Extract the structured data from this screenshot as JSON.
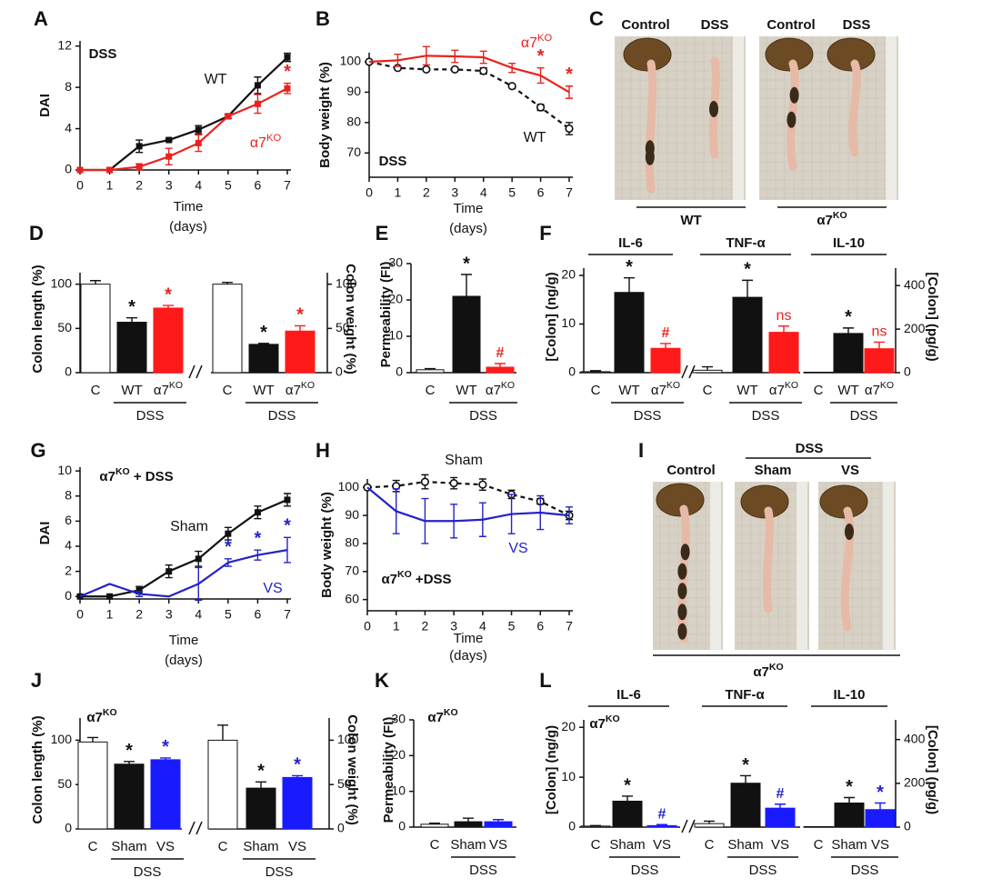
{
  "chart_data": [
    {
      "type": "line",
      "panel": "A",
      "ylabel": "DAI",
      "xlabel": [
        "Time",
        "(days)"
      ],
      "inset": "DSS",
      "x": [
        0,
        1,
        2,
        3,
        4,
        5,
        6,
        7
      ],
      "xlim": [
        0,
        7
      ],
      "xticks": [
        0,
        1,
        2,
        3,
        4,
        5,
        6,
        7
      ],
      "ylim": [
        0,
        12.5
      ],
      "yticks": [
        0,
        4,
        8,
        12
      ],
      "series": [
        {
          "name": "WT",
          "color": "#111111",
          "marker": "square",
          "dash": false,
          "values": [
            0,
            0,
            2.3,
            2.9,
            3.9,
            5.2,
            8.2,
            10.9
          ],
          "errors": [
            0,
            0,
            0.6,
            0.1,
            0.4,
            0.2,
            0.8,
            0.4
          ]
        },
        {
          "name": "α7KO",
          "color": "#e8231e",
          "marker": "square",
          "dash": false,
          "values": [
            0,
            0,
            0.3,
            1.3,
            2.6,
            5.2,
            6.4,
            7.9
          ],
          "errors": [
            0,
            0,
            0.3,
            0.8,
            0.8,
            0.2,
            0.9,
            0.5
          ]
        }
      ],
      "marks": [
        {
          "series": 1,
          "index": 7,
          "text": "*"
        }
      ]
    },
    {
      "type": "line",
      "panel": "B",
      "ylabel": "Body weight (%)",
      "xlabel": [
        "Time",
        "(days)"
      ],
      "inset": "DSS",
      "x": [
        0,
        1,
        2,
        3,
        4,
        5,
        6,
        7
      ],
      "xlim": [
        0,
        7
      ],
      "xticks": [
        0,
        1,
        2,
        3,
        4,
        5,
        6,
        7
      ],
      "ylim": [
        62,
        103
      ],
      "yticks": [
        70,
        80,
        90,
        100
      ],
      "series": [
        {
          "name": "WT",
          "color": "#111111",
          "marker": "circle-open",
          "dash": true,
          "values": [
            100,
            98,
            97.5,
            97.5,
            97,
            92,
            85,
            78
          ],
          "errors": [
            0,
            0.5,
            0.5,
            0.5,
            1,
            0.5,
            1,
            2
          ]
        },
        {
          "name": "α7KO",
          "color": "#e8231e",
          "marker": "none",
          "dash": false,
          "values": [
            100,
            100.5,
            102,
            101.8,
            101.5,
            98,
            95.5,
            90
          ],
          "errors": [
            0,
            2,
            3,
            2,
            2,
            1.5,
            2.5,
            2
          ]
        }
      ],
      "marks": [
        {
          "series": 1,
          "index": 6,
          "text": "*"
        },
        {
          "series": 1,
          "index": 7,
          "text": "*"
        }
      ]
    },
    {
      "type": "bar",
      "panel": "D",
      "ylabel": "Colon length (%)",
      "y2label": "Colon weight (%)",
      "ylim": [
        0,
        113
      ],
      "yticks": [
        0,
        50,
        100
      ],
      "y2lim": [
        0,
        113
      ],
      "y2ticks": [
        0,
        50,
        100
      ],
      "groups": [
        {
          "axis": "y",
          "categories": [
            "C",
            "WT",
            "α7KO"
          ],
          "values": [
            100,
            57,
            73
          ],
          "errors": [
            4,
            5,
            3
          ],
          "colors": [
            "#ffffff",
            "#111111",
            "#ff1a1a"
          ],
          "bracket": "DSS",
          "marks": [
            {
              "index": 1,
              "text": "*",
              "color": "#111111"
            },
            {
              "index": 2,
              "text": "*",
              "color": "#e8231e"
            }
          ]
        },
        {
          "axis": "y2",
          "categories": [
            "C",
            "WT",
            "α7KO"
          ],
          "values": [
            100,
            32,
            47
          ],
          "errors": [
            2,
            1,
            6
          ],
          "colors": [
            "#ffffff",
            "#111111",
            "#ff1a1a"
          ],
          "bracket": "DSS",
          "marks": [
            {
              "index": 1,
              "text": "*",
              "color": "#111111"
            },
            {
              "index": 2,
              "text": "*",
              "color": "#e8231e"
            }
          ]
        }
      ]
    },
    {
      "type": "bar",
      "panel": "E",
      "ylabel": "Permeability (FI)",
      "ylim": [
        0,
        30
      ],
      "yticks": [
        0,
        10,
        20,
        30
      ],
      "groups": [
        {
          "axis": "y",
          "categories": [
            "C",
            "WT",
            "α7KO"
          ],
          "values": [
            0.8,
            21,
            1.5
          ],
          "errors": [
            0.3,
            6,
            1
          ],
          "colors": [
            "#ffffff",
            "#111111",
            "#ff1a1a"
          ],
          "bracket": "DSS",
          "marks": [
            {
              "index": 1,
              "text": "*",
              "color": "#111111"
            },
            {
              "index": 2,
              "text": "#",
              "color": "#e8231e"
            }
          ]
        }
      ]
    },
    {
      "type": "bar",
      "panel": "F",
      "ylabel": "[Colon] (ng/g)",
      "y2label": "[Colon] (pg/g)",
      "ylim": [
        0,
        21.5
      ],
      "yticks": [
        0,
        10,
        20
      ],
      "y2lim": [
        0,
        480
      ],
      "y2ticks": [
        0,
        200,
        400
      ],
      "groups": [
        {
          "title": "IL-6",
          "axis": "y",
          "categories": [
            "C",
            "WT",
            "α7KO"
          ],
          "values": [
            0.2,
            16.5,
            5
          ],
          "errors": [
            0.2,
            3,
            1
          ],
          "colors": [
            "#ffffff",
            "#111111",
            "#ff1a1a"
          ],
          "bracket": "DSS",
          "marks": [
            {
              "index": 1,
              "text": "*",
              "color": "#111111"
            },
            {
              "index": 2,
              "text": "#",
              "color": "#e8231e"
            }
          ]
        },
        {
          "title": "TNF-α",
          "axis": "y",
          "categories": [
            "C",
            "WT",
            "α7KO"
          ],
          "values": [
            0.5,
            15.5,
            8.3
          ],
          "errors": [
            0.7,
            3.5,
            1.3
          ],
          "colors": [
            "#ffffff",
            "#111111",
            "#ff1a1a"
          ],
          "bracket": "DSS",
          "marks": [
            {
              "index": 1,
              "text": "*",
              "color": "#111111"
            },
            {
              "index": 2,
              "text": "ns",
              "color": "#e8231e"
            }
          ]
        },
        {
          "title": "IL-10",
          "axis": "y2",
          "categories": [
            "C",
            "WT",
            "α7KO"
          ],
          "values": [
            2,
            180,
            110
          ],
          "errors": [
            0,
            25,
            30
          ],
          "colors": [
            "#ffffff",
            "#111111",
            "#ff1a1a"
          ],
          "bracket": "DSS",
          "marks": [
            {
              "index": 1,
              "text": "*",
              "color": "#111111"
            },
            {
              "index": 2,
              "text": "ns",
              "color": "#e8231e"
            }
          ]
        }
      ]
    },
    {
      "type": "line",
      "panel": "G",
      "ylabel": "DAI",
      "xlabel": [
        "Time",
        "(days)"
      ],
      "inset": "α7KO + DSS",
      "x": [
        0,
        1,
        2,
        3,
        4,
        5,
        6,
        7
      ],
      "xlim": [
        0,
        7
      ],
      "xticks": [
        0,
        1,
        2,
        3,
        4,
        5,
        6,
        7
      ],
      "ylim": [
        -0.2,
        10.3
      ],
      "yticks": [
        0,
        2,
        4,
        6,
        8,
        10
      ],
      "series": [
        {
          "name": "Sham",
          "color": "#111111",
          "marker": "square",
          "dash": false,
          "values": [
            0,
            0,
            0.5,
            2,
            3,
            5,
            6.7,
            7.7
          ],
          "errors": [
            0,
            0,
            0.3,
            0.5,
            0.6,
            0.5,
            0.5,
            0.5
          ]
        },
        {
          "name": "VS",
          "color": "#2323c8",
          "marker": "none",
          "dash": false,
          "values": [
            0,
            1,
            0.2,
            0,
            1,
            2.7,
            3.3,
            3.7
          ],
          "errors": [
            0,
            0,
            0.2,
            0,
            1.3,
            0.3,
            0.4,
            1
          ]
        }
      ],
      "marks": [
        {
          "series": 1,
          "index": 5,
          "text": "*"
        },
        {
          "series": 1,
          "index": 6,
          "text": "*"
        },
        {
          "series": 1,
          "index": 7,
          "text": "*"
        }
      ]
    },
    {
      "type": "line",
      "panel": "H",
      "ylabel": "Body weight (%)",
      "xlabel": [
        "Time",
        "(days)"
      ],
      "inset": "α7KO +DSS",
      "x": [
        0,
        1,
        2,
        3,
        4,
        5,
        6,
        7
      ],
      "xlim": [
        0,
        7
      ],
      "xticks": [
        0,
        1,
        2,
        3,
        4,
        5,
        6,
        7
      ],
      "ylim": [
        56,
        103
      ],
      "yticks": [
        60,
        70,
        80,
        90,
        100
      ],
      "series": [
        {
          "name": "Sham",
          "color": "#111111",
          "marker": "circle-open",
          "dash": true,
          "values": [
            100,
            100.5,
            102,
            101.5,
            101,
            97.5,
            95,
            90
          ],
          "errors": [
            0,
            2,
            2.5,
            2,
            2,
            1.5,
            1,
            1.5
          ]
        },
        {
          "name": "VS",
          "color": "#2323c8",
          "marker": "none",
          "dash": false,
          "values": [
            100,
            91.5,
            88,
            88,
            88.5,
            90.5,
            91,
            90
          ],
          "errors": [
            0,
            8,
            8,
            6,
            6,
            7,
            6,
            3
          ]
        }
      ],
      "marks": []
    },
    {
      "type": "bar",
      "panel": "J",
      "inset": "α7KO",
      "ylabel": "Colon length (%)",
      "y2label": "Colon weight (%)",
      "ylim": [
        0,
        125
      ],
      "yticks": [
        0,
        50,
        100
      ],
      "y2lim": [
        0,
        125
      ],
      "y2ticks": [
        0,
        50,
        100
      ],
      "groups": [
        {
          "axis": "y",
          "categories": [
            "C",
            "Sham",
            "VS"
          ],
          "values": [
            98,
            73,
            78
          ],
          "errors": [
            5,
            3,
            2
          ],
          "colors": [
            "#ffffff",
            "#111111",
            "#1a1aff"
          ],
          "bracket": "DSS",
          "marks": [
            {
              "index": 1,
              "text": "*",
              "color": "#111111"
            },
            {
              "index": 2,
              "text": "*",
              "color": "#2323c8"
            }
          ]
        },
        {
          "axis": "y2",
          "categories": [
            "C",
            "Sham",
            "VS"
          ],
          "values": [
            100,
            46,
            58
          ],
          "errors": [
            17,
            7,
            2
          ],
          "colors": [
            "#ffffff",
            "#111111",
            "#1a1aff"
          ],
          "bracket": "DSS",
          "marks": [
            {
              "index": 1,
              "text": "*",
              "color": "#111111"
            },
            {
              "index": 2,
              "text": "*",
              "color": "#2323c8"
            }
          ]
        }
      ]
    },
    {
      "type": "bar",
      "panel": "K",
      "inset": "α7KO",
      "ylabel": "Permeability (FI)",
      "ylim": [
        0,
        30
      ],
      "yticks": [
        0,
        10,
        20,
        30
      ],
      "groups": [
        {
          "axis": "y",
          "categories": [
            "C",
            "Sham",
            "VS"
          ],
          "values": [
            0.8,
            1.5,
            1.5
          ],
          "errors": [
            0.3,
            1,
            0.6
          ],
          "colors": [
            "#ffffff",
            "#111111",
            "#1a1aff"
          ],
          "bracket": "DSS",
          "marks": []
        }
      ]
    },
    {
      "type": "bar",
      "panel": "L",
      "inset": "α7KO",
      "ylabel": "[Colon] (ng/g)",
      "y2label": "[Colon] (pg/g)",
      "ylim": [
        0,
        21.5
      ],
      "yticks": [
        0,
        10,
        20
      ],
      "y2lim": [
        0,
        490
      ],
      "y2ticks": [
        0,
        200,
        400
      ],
      "groups": [
        {
          "title": "IL-6",
          "axis": "y",
          "categories": [
            "C",
            "Sham",
            "VS"
          ],
          "values": [
            0.2,
            5.2,
            0.3
          ],
          "errors": [
            0.1,
            1,
            0.2
          ],
          "colors": [
            "#ffffff",
            "#111111",
            "#1a1aff"
          ],
          "bracket": "DSS",
          "marks": [
            {
              "index": 1,
              "text": "*",
              "color": "#111111"
            },
            {
              "index": 2,
              "text": "#",
              "color": "#2323c8"
            }
          ]
        },
        {
          "title": "TNF-α",
          "axis": "y",
          "categories": [
            "C",
            "Sham",
            "VS"
          ],
          "values": [
            0.7,
            8.8,
            3.8
          ],
          "errors": [
            0.5,
            1.5,
            0.8
          ],
          "colors": [
            "#ffffff",
            "#111111",
            "#1a1aff"
          ],
          "bracket": "DSS",
          "marks": [
            {
              "index": 1,
              "text": "*",
              "color": "#111111"
            },
            {
              "index": 2,
              "text": "#",
              "color": "#2323c8"
            }
          ]
        },
        {
          "title": "IL-10",
          "axis": "y2",
          "categories": [
            "C",
            "Sham",
            "VS"
          ],
          "values": [
            2,
            110,
            80
          ],
          "errors": [
            0,
            25,
            30
          ],
          "colors": [
            "#ffffff",
            "#111111",
            "#1a1aff"
          ],
          "bracket": "DSS",
          "marks": [
            {
              "index": 1,
              "text": "*",
              "color": "#111111"
            },
            {
              "index": 2,
              "text": "*",
              "color": "#2323c8"
            }
          ]
        }
      ]
    }
  ],
  "photos": [
    {
      "panel": "C",
      "labels": [
        "Control",
        "DSS",
        "Control",
        "DSS"
      ],
      "groups": [
        "WT",
        "α7KO"
      ]
    },
    {
      "panel": "I",
      "header": "DSS",
      "labels": [
        "Control",
        "Sham",
        "VS"
      ],
      "footer": "α7KO"
    }
  ]
}
